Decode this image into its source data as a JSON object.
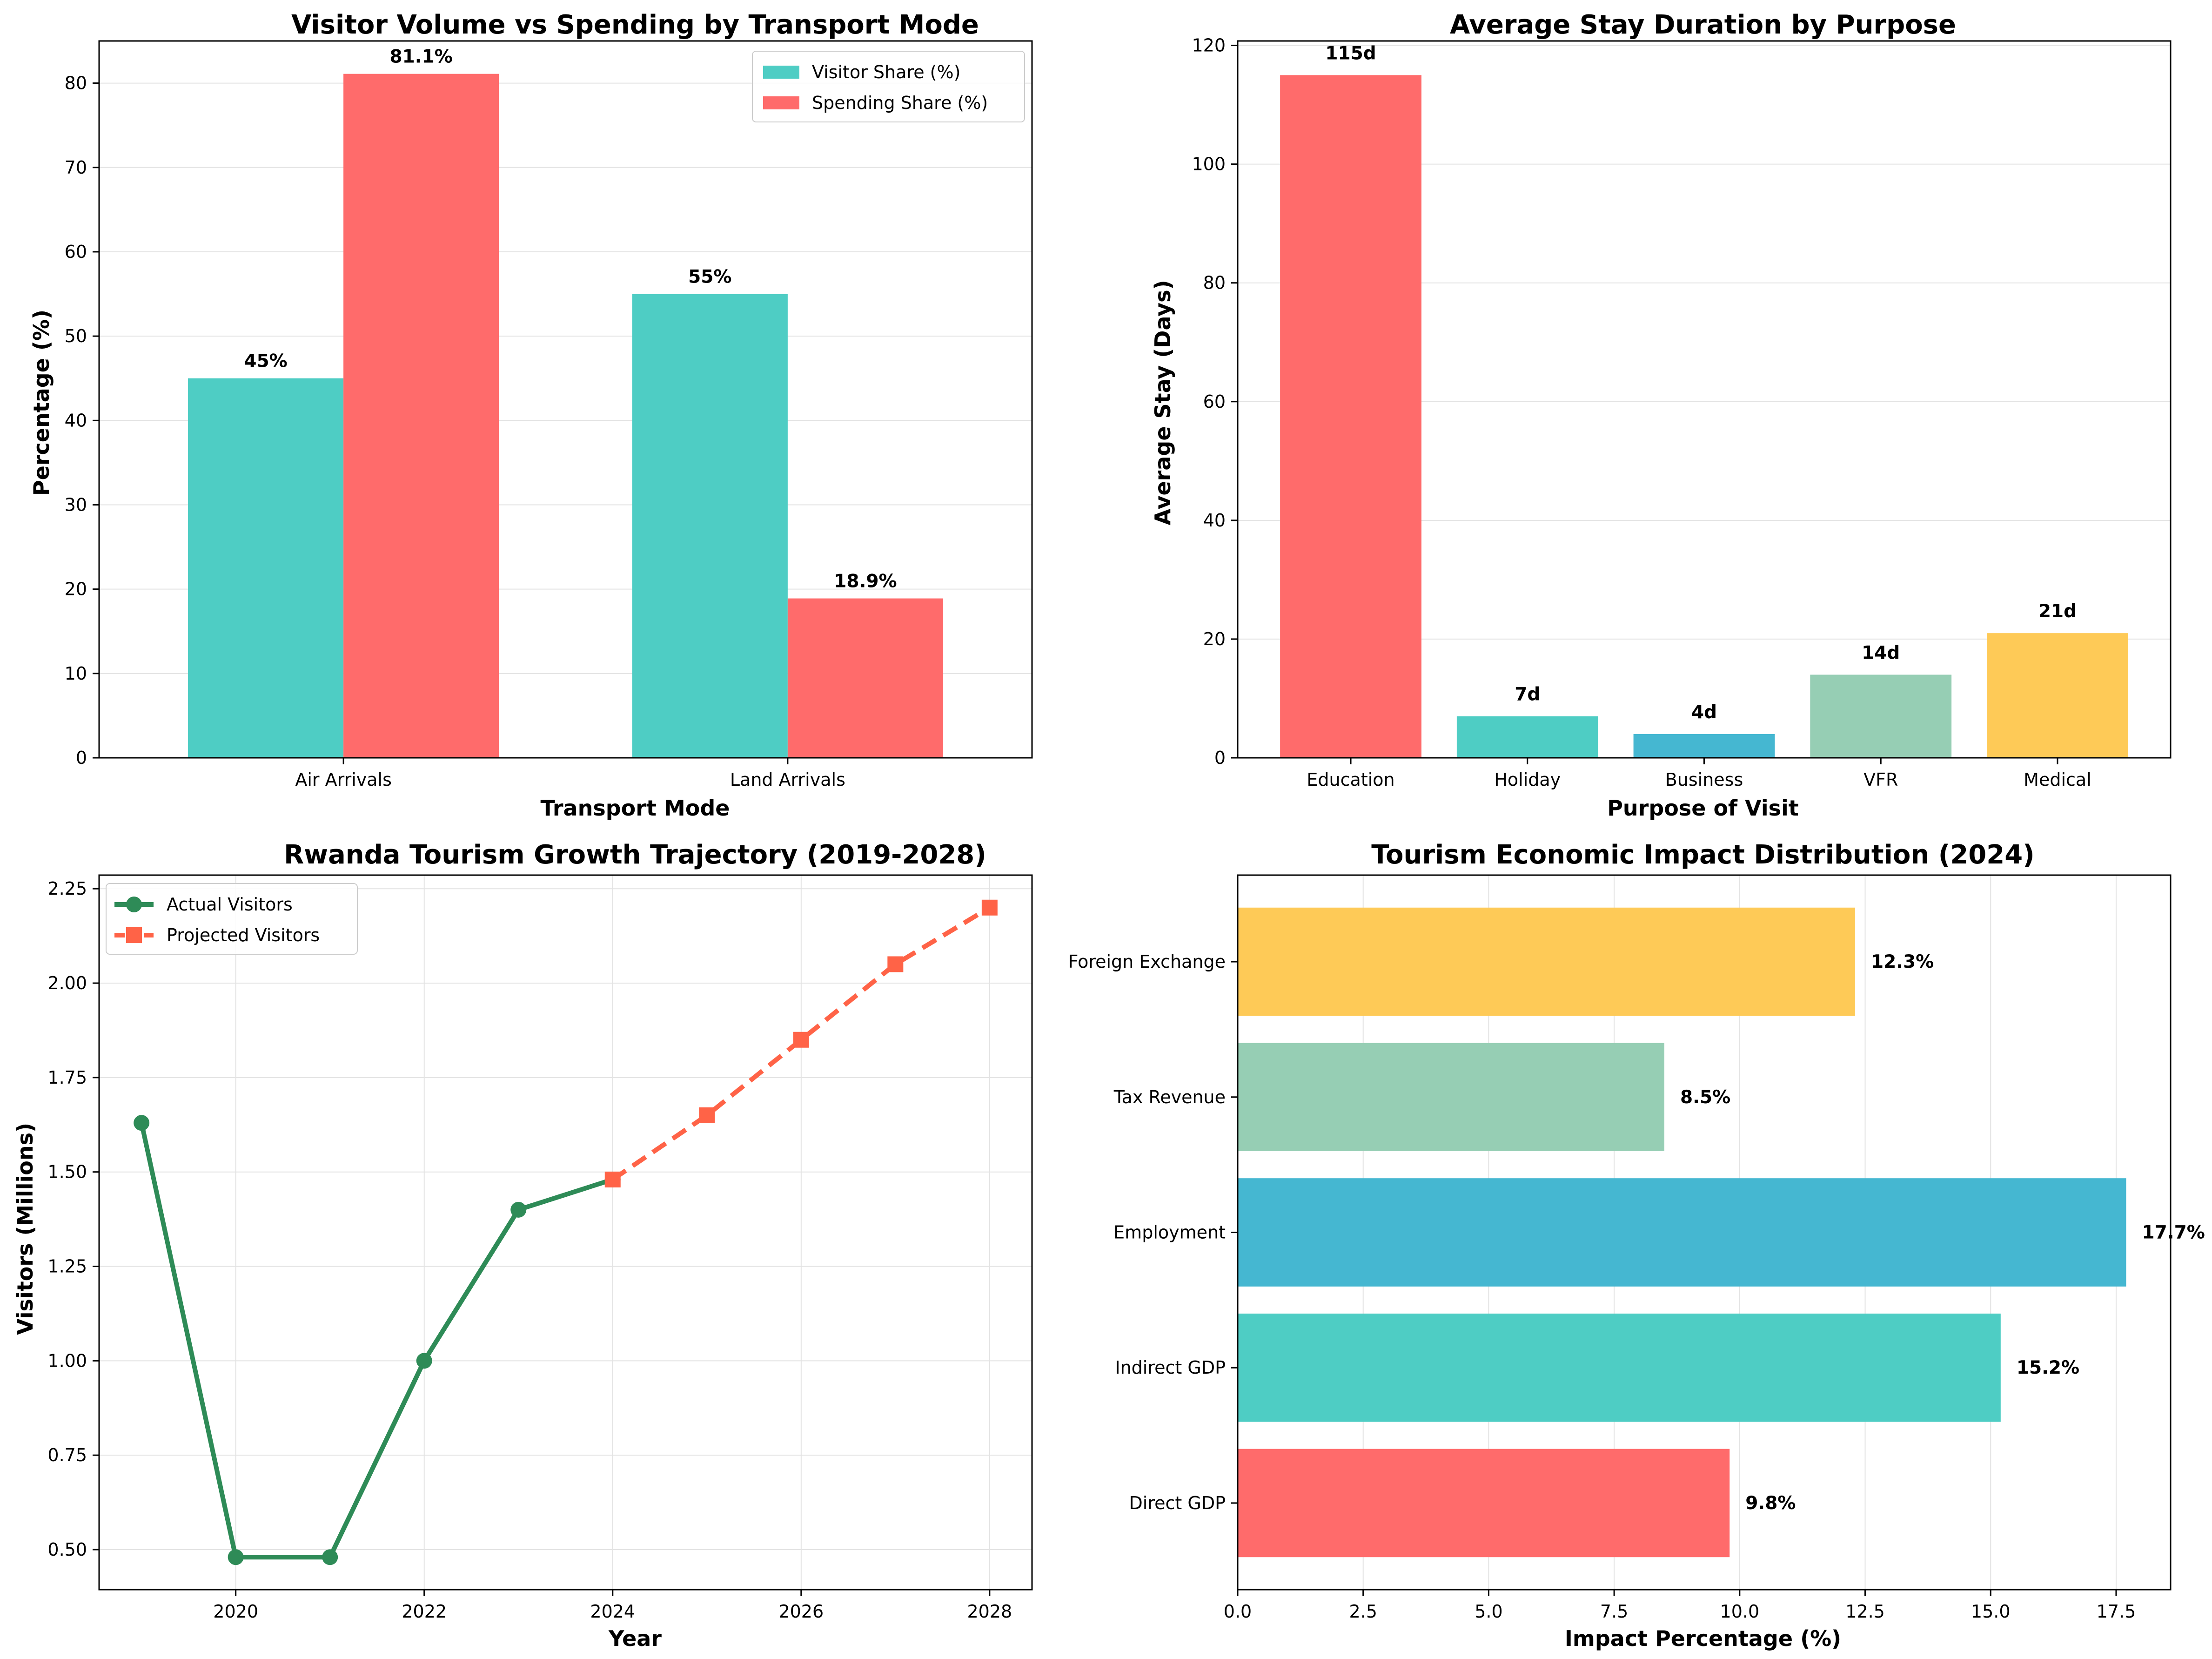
{
  "figure": {
    "background": "#ffffff"
  },
  "chart_data": [
    {
      "id": "transport",
      "type": "bar",
      "title": "Visitor Volume vs Spending by Transport Mode",
      "xlabel": "Transport Mode",
      "ylabel": "Percentage (%)",
      "categories": [
        "Air Arrivals",
        "Land Arrivals"
      ],
      "series": [
        {
          "name": "Visitor Share (%)",
          "color": "#4ECDC4",
          "values": [
            45,
            55
          ],
          "labels": [
            "45%",
            "55%"
          ]
        },
        {
          "name": "Spending Share (%)",
          "color": "#FF6B6B",
          "values": [
            81.1,
            18.9
          ],
          "labels": [
            "81.1%",
            "18.9%"
          ]
        }
      ],
      "ylim": [
        0,
        85
      ],
      "yticks": [
        0,
        10,
        20,
        30,
        40,
        50,
        60,
        70,
        80
      ],
      "ytick_labels": [
        "0",
        "10",
        "20",
        "30",
        "40",
        "50",
        "60",
        "70",
        "80"
      ],
      "legend": "upper-right",
      "grid": true
    },
    {
      "id": "stay",
      "type": "bar",
      "title": "Average Stay Duration by Purpose",
      "xlabel": "Purpose of Visit",
      "ylabel": "Average Stay (Days)",
      "categories": [
        "Education",
        "Holiday",
        "Business",
        "VFR",
        "Medical"
      ],
      "values": [
        115,
        7,
        4,
        14,
        21
      ],
      "labels": [
        "115d",
        "7d",
        "4d",
        "14d",
        "21d"
      ],
      "colors": [
        "#FF6B6B",
        "#4ECDC4",
        "#45B7D1",
        "#96CEB4",
        "#FECA57"
      ],
      "ylim": [
        0,
        120.75
      ],
      "yticks": [
        0,
        20,
        40,
        60,
        80,
        100,
        120
      ],
      "ytick_labels": [
        "0",
        "20",
        "40",
        "60",
        "80",
        "100",
        "120"
      ],
      "grid": true
    },
    {
      "id": "growth",
      "type": "line",
      "title": "Rwanda Tourism Growth Trajectory (2019-2028)",
      "xlabel": "Year",
      "ylabel": "Visitors (Millions)",
      "series": [
        {
          "name": "Actual Visitors",
          "color": "#2E8B57",
          "marker": "circle",
          "dashed": false,
          "x": [
            2019,
            2020,
            2021,
            2022,
            2023,
            2024
          ],
          "y": [
            1.63,
            0.48,
            0.48,
            1.0,
            1.4,
            1.48
          ]
        },
        {
          "name": "Projected Visitors",
          "color": "#FF6347",
          "marker": "square",
          "dashed": true,
          "x": [
            2024,
            2025,
            2026,
            2027,
            2028
          ],
          "y": [
            1.48,
            1.65,
            1.85,
            2.05,
            2.2
          ]
        }
      ],
      "xlim": [
        2018.55,
        2028.45
      ],
      "ylim": [
        0.394,
        2.286
      ],
      "xticks": [
        2020,
        2022,
        2024,
        2026,
        2028
      ],
      "xtick_labels": [
        "2020",
        "2022",
        "2024",
        "2026",
        "2028"
      ],
      "yticks": [
        0.5,
        0.75,
        1.0,
        1.25,
        1.5,
        1.75,
        2.0,
        2.25
      ],
      "ytick_labels": [
        "0.50",
        "0.75",
        "1.00",
        "1.25",
        "1.50",
        "1.75",
        "2.00",
        "2.25"
      ],
      "legend": "upper-left",
      "grid": true
    },
    {
      "id": "impact",
      "type": "bar",
      "orientation": "horizontal",
      "title": "Tourism Economic Impact Distribution (2024)",
      "xlabel": "Impact Percentage (%)",
      "ylabel": "",
      "categories": [
        "Direct GDP",
        "Indirect GDP",
        "Employment",
        "Tax Revenue",
        "Foreign Exchange"
      ],
      "values": [
        9.8,
        15.2,
        17.7,
        8.5,
        12.3
      ],
      "labels": [
        "9.8%",
        "15.2%",
        "17.7%",
        "8.5%",
        "12.3%"
      ],
      "colors": [
        "#FF6B6B",
        "#4ECDC4",
        "#45B7D1",
        "#96CEB4",
        "#FECA57"
      ],
      "xlim": [
        0,
        18.585
      ],
      "xticks": [
        0,
        2.5,
        5,
        7.5,
        10,
        12.5,
        15,
        17.5
      ],
      "xtick_labels": [
        "0.0",
        "2.5",
        "5.0",
        "7.5",
        "10.0",
        "12.5",
        "15.0",
        "17.5"
      ],
      "grid": true
    }
  ]
}
